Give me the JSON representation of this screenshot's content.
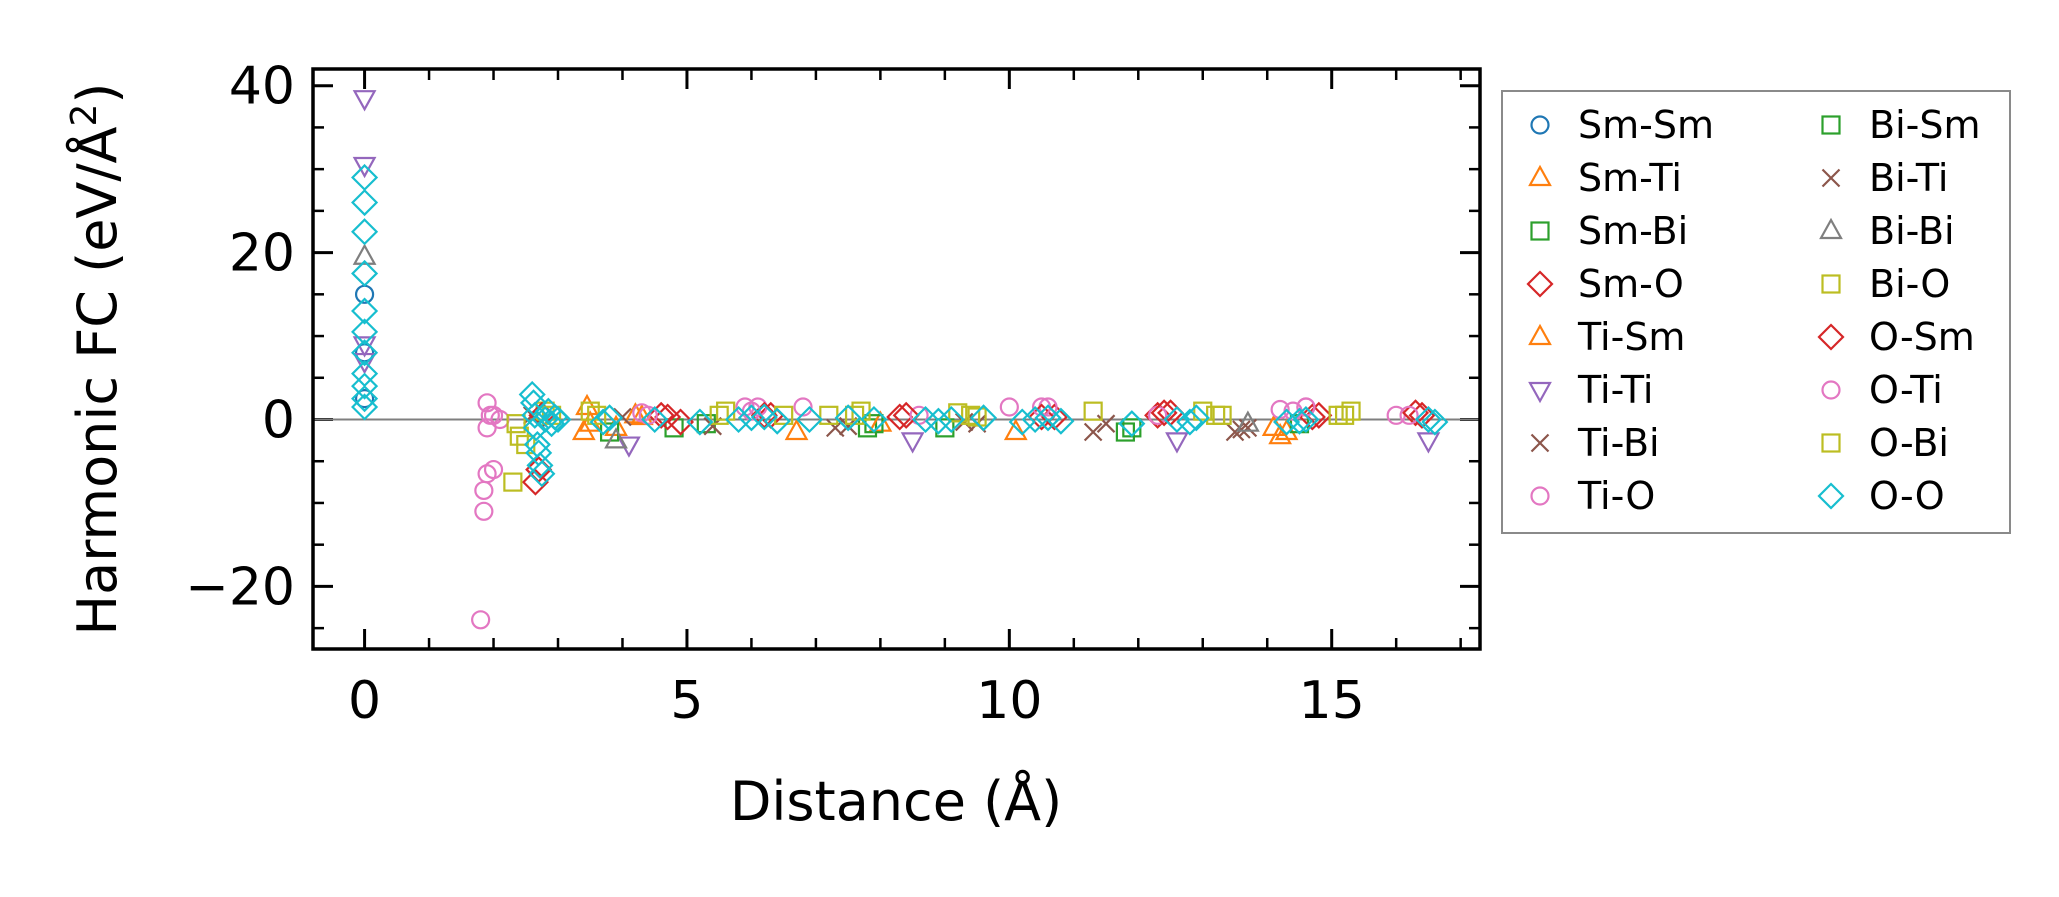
{
  "chart_data": {
    "type": "scatter",
    "title": "",
    "xlabel": "Distance (Å)",
    "ylabel_main": "Harmonic FC (eV/Å",
    "ylabel_sup": "2",
    "ylabel_end": ")",
    "xlim": [
      -0.8,
      17.3
    ],
    "ylim": [
      -27.5,
      42
    ],
    "xticks": [
      0,
      5,
      10,
      15
    ],
    "xtick_labels": [
      "0",
      "5",
      "10",
      "15"
    ],
    "yticks": [
      -20,
      0,
      20,
      40
    ],
    "ytick_labels": [
      "−20",
      "0",
      "20",
      "40"
    ],
    "zero_line": 0,
    "grid": false,
    "legend_position": "right, outside the axes",
    "series": [
      {
        "name": "Sm-Sm",
        "color": "#1f77b4",
        "marker": "circle",
        "x": [
          0,
          0,
          0
        ],
        "y": [
          15,
          8,
          2.5
        ]
      },
      {
        "name": "Sm-Ti",
        "color": "#ff7f0e",
        "marker": "triangle-up",
        "x": [
          3.4,
          3.45,
          3.9,
          4.2,
          6.7,
          10.1,
          14.2,
          14.3
        ],
        "y": [
          -1.5,
          1.5,
          -1,
          0.5,
          -1.5,
          -1.5,
          -2,
          -1.5
        ]
      },
      {
        "name": "Sm-Bi",
        "color": "#2ca02c",
        "marker": "square",
        "x": [
          4.8,
          5.3,
          7.8,
          9.0,
          11.8,
          14.5
        ],
        "y": [
          -1,
          -0.5,
          -1,
          -1,
          -1.5,
          -0.5
        ]
      },
      {
        "name": "Sm-O",
        "color": "#d62728",
        "marker": "diamond",
        "x": [
          2.65,
          2.7,
          4.6,
          4.9,
          6.3,
          8.3,
          10.7,
          12.3,
          12.5,
          14.8,
          16.4
        ],
        "y": [
          -7.5,
          -6,
          0.5,
          -0.3,
          0.5,
          0.3,
          0.3,
          0.5,
          0.8,
          0.5,
          0.5
        ]
      },
      {
        "name": "Ti-Sm",
        "color": "#ff7f0e",
        "marker": "triangle-up",
        "x": [
          3.5,
          4.3,
          8.0,
          14.1
        ],
        "y": [
          -0.5,
          0.3,
          -0.5,
          -1
        ]
      },
      {
        "name": "Ti-Ti",
        "color": "#9467bd",
        "marker": "triangle-down",
        "x": [
          0,
          0,
          0,
          0,
          4.1,
          8.5,
          12.6,
          16.5
        ],
        "y": [
          38.5,
          30.5,
          9,
          7,
          -3,
          -2.5,
          -2.5,
          -2.5
        ]
      },
      {
        "name": "Ti-Bi",
        "color": "#8c564b",
        "marker": "x",
        "x": [
          2.6,
          5.4,
          7.3,
          9.5,
          11.3,
          13.5,
          13.7
        ],
        "y": [
          0.5,
          -0.8,
          -1,
          -0.5,
          -1.5,
          -1.5,
          -1
        ]
      },
      {
        "name": "Ti-O",
        "color": "#e377c2",
        "marker": "circle",
        "x": [
          1.8,
          1.85,
          1.85,
          1.9,
          1.9,
          1.95,
          2.0,
          2.1,
          4.3,
          5.9,
          6.1,
          6.8,
          8.6,
          10.0,
          10.6,
          12.3,
          14.2,
          14.6,
          16.0
        ],
        "y": [
          -24,
          -11,
          -8.5,
          -6.5,
          2,
          0.5,
          -6,
          0,
          0.8,
          1.5,
          1.5,
          1.5,
          0.5,
          1.5,
          1.5,
          0.5,
          1.2,
          1.5,
          0.5
        ]
      },
      {
        "name": "Bi-Sm",
        "color": "#2ca02c",
        "marker": "square",
        "x": [
          3.8,
          7.9,
          11.9
        ],
        "y": [
          -1.5,
          -0.5,
          -1
        ]
      },
      {
        "name": "Bi-Ti",
        "color": "#8c564b",
        "marker": "x",
        "x": [
          4.0,
          7.5,
          9.3,
          11.5,
          13.6
        ],
        "y": [
          0.3,
          -0.8,
          -0.3,
          -0.5,
          -1.2
        ]
      },
      {
        "name": "Bi-Bi",
        "color": "#7f7f7f",
        "marker": "triangle-up",
        "x": [
          0,
          3.9,
          13.7
        ],
        "y": [
          19.5,
          -2.5,
          -0.5
        ]
      },
      {
        "name": "Bi-O",
        "color": "#bcbd22",
        "marker": "square",
        "x": [
          2.3,
          2.35,
          2.5,
          2.8,
          3.5,
          5.6,
          6.5,
          7.2,
          7.7,
          9.2,
          9.5,
          11.3,
          13.0,
          13.3,
          15.1,
          15.3
        ],
        "y": [
          -7.5,
          -0.5,
          -3,
          1,
          1,
          1,
          0.5,
          0.5,
          1,
          0.8,
          0.3,
          1,
          1,
          0.5,
          0.5,
          1
        ]
      },
      {
        "name": "O-Sm",
        "color": "#d62728",
        "marker": "diamond",
        "x": [
          2.75,
          4.7,
          6.2,
          8.4,
          10.5,
          12.4,
          14.7,
          16.3
        ],
        "y": [
          0.5,
          0.3,
          0.5,
          0.5,
          0.3,
          0.8,
          0.3,
          0.8
        ]
      },
      {
        "name": "O-Ti",
        "color": "#e377c2",
        "marker": "circle",
        "x": [
          1.9,
          2.0,
          4.4,
          6.0,
          10.5,
          14.4,
          14.6,
          16.2
        ],
        "y": [
          -1,
          0.5,
          0.5,
          1,
          1.5,
          1,
          1.5,
          0.5
        ]
      },
      {
        "name": "O-Bi",
        "color": "#bcbd22",
        "marker": "square",
        "x": [
          2.4,
          2.9,
          3.6,
          5.5,
          7.6,
          9.4,
          13.2,
          15.2
        ],
        "y": [
          -2,
          0.5,
          0.5,
          0.5,
          0.5,
          0.5,
          0.5,
          0.5
        ]
      },
      {
        "name": "O-O",
        "color": "#17becf",
        "marker": "diamond",
        "x": [
          0,
          0,
          0,
          0,
          0,
          0,
          0,
          0,
          0,
          0,
          0,
          2.6,
          2.62,
          2.64,
          2.66,
          2.68,
          2.7,
          2.72,
          2.75,
          2.8,
          2.85,
          2.9,
          2.95,
          3.0,
          3.7,
          3.8,
          4.5,
          5.2,
          5.8,
          6.0,
          6.2,
          6.4,
          6.9,
          7.5,
          7.9,
          8.7,
          8.9,
          9.1,
          9.6,
          10.2,
          10.4,
          10.6,
          10.8,
          11.9,
          12.6,
          12.8,
          12.9,
          14.3,
          14.5,
          14.6,
          16.5,
          16.6
        ],
        "y": [
          29,
          26,
          22.5,
          17.5,
          13,
          10.5,
          8,
          5.5,
          4,
          2.5,
          1.5,
          3,
          2,
          0.5,
          -1,
          -3,
          -4,
          -5.5,
          -6.5,
          0,
          1,
          -0.5,
          0.3,
          0,
          -0.3,
          0.2,
          0,
          -0.3,
          0,
          0.2,
          0.3,
          -0.2,
          0,
          0.2,
          0,
          0,
          -0.2,
          0,
          0.2,
          -0.3,
          0,
          0.2,
          -0.2,
          -0.5,
          0,
          -0.3,
          0.2,
          -0.3,
          -0.2,
          0,
          0,
          -0.3
        ]
      }
    ]
  }
}
